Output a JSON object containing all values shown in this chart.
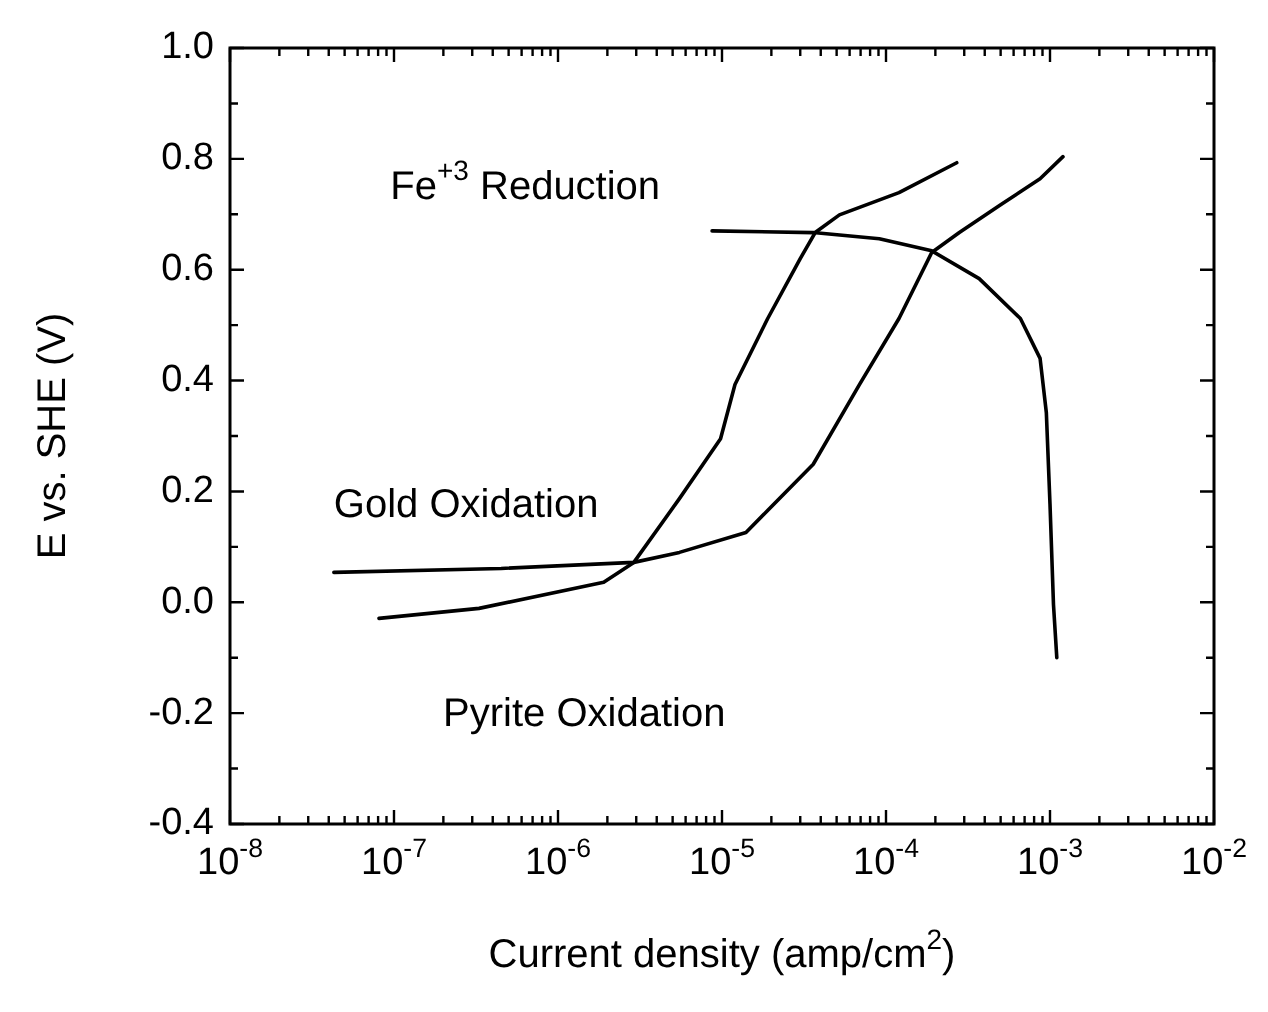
{
  "chart_data": {
    "type": "line",
    "xlabel": "Current density (amp/cm$^{2}$)",
    "ylabel": "E vs. SHE (V)",
    "log": "x",
    "grid": false,
    "legend": false,
    "marker": "none",
    "line_style": "solid",
    "xlim": [
      1e-08,
      0.01
    ],
    "xticks": [
      {
        "value": 1e-08,
        "label": "10$^{-8}$"
      },
      {
        "value": 1e-07,
        "label": "10$^{-7}$"
      },
      {
        "value": 1e-06,
        "label": "10$^{-6}$"
      },
      {
        "value": 1e-05,
        "label": "10$^{-5}$"
      },
      {
        "value": 0.0001,
        "label": "10$^{-4}$"
      },
      {
        "value": 0.001,
        "label": "10$^{-3}$"
      },
      {
        "value": 0.01,
        "label": "10$^{-2}$"
      }
    ],
    "ylim": [
      -0.4,
      1.0
    ],
    "yticks": [
      {
        "value": -0.4,
        "label": "-0.4"
      },
      {
        "value": -0.2,
        "label": "-0.2"
      },
      {
        "value": 0,
        "label": "0.0"
      },
      {
        "value": 0.2,
        "label": "0.2"
      },
      {
        "value": 0.4,
        "label": "0.4"
      },
      {
        "value": 0.6,
        "label": "0.6"
      },
      {
        "value": 0.8,
        "label": "0.8"
      },
      {
        "value": 1,
        "label": "1.0"
      }
    ],
    "series": [
      {
        "color": "#000000",
        "x": [
          4.3e-08,
          4.5e-07,
          2.9e-06,
          5.5e-06,
          1.4e-05,
          3.6e-05,
          6.9e-05,
          0.00012,
          0.00019,
          0.00028,
          0.0005,
          0.00087,
          0.0012
        ],
        "values": [
          0.054,
          0.061,
          0.072,
          0.09,
          0.126,
          0.249,
          0.393,
          0.512,
          0.631,
          0.667,
          0.717,
          0.764,
          0.804
        ]
      },
      {
        "color": "#000000",
        "x": [
          8.1e-08,
          3.3e-07,
          1.9e-06,
          2.9e-06,
          5.5e-06,
          9.8e-06,
          1.2e-05,
          1.9e-05,
          3e-05,
          3.7e-05,
          5.2e-05,
          0.00012,
          0.00027
        ],
        "values": [
          -0.029,
          -0.011,
          0.036,
          0.072,
          0.187,
          0.295,
          0.393,
          0.512,
          0.62,
          0.667,
          0.699,
          0.739,
          0.793
        ]
      },
      {
        "color": "#000000",
        "x": [
          8.7e-06,
          3.6e-05,
          9.1e-05,
          0.00019,
          0.00037,
          0.00066,
          0.00087,
          0.00095,
          0.001,
          0.00105,
          0.0011
        ],
        "values": [
          0.67,
          0.667,
          0.656,
          0.634,
          0.584,
          0.512,
          0.44,
          0.342,
          0.177,
          -0.004,
          -0.1
        ]
      }
    ],
    "annotations": [
      "Fe$^{+3}$ Reduction",
      "Gold Oxidation",
      "Pyrite Oxidation"
    ]
  }
}
